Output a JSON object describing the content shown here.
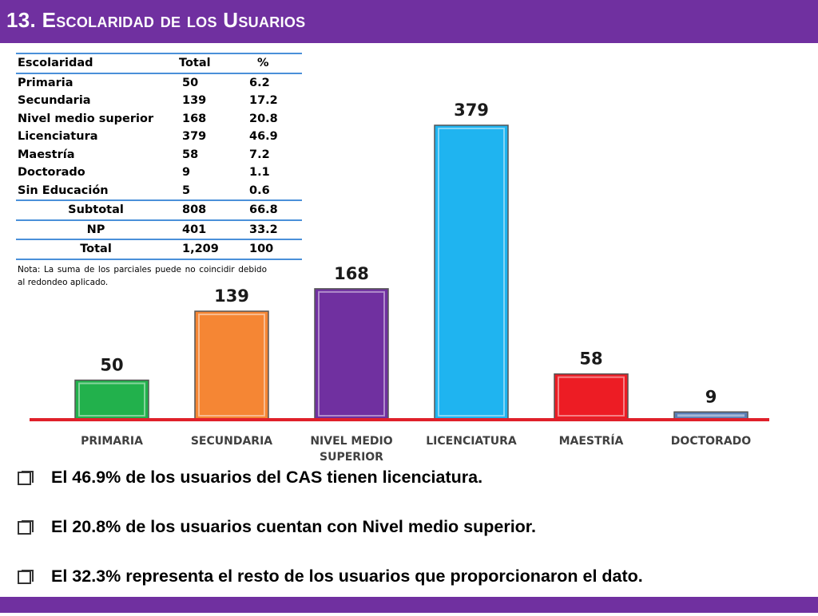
{
  "title": "13. Escolaridad de los Usuarios",
  "table": {
    "headers": [
      "Escolaridad",
      "Total",
      "%"
    ],
    "rows": [
      [
        "Primaria",
        "50",
        "6.2"
      ],
      [
        "Secundaria",
        "139",
        "17.2"
      ],
      [
        "Nivel medio superior",
        "168",
        "20.8"
      ],
      [
        "Licenciatura",
        "379",
        "46.9"
      ],
      [
        "Maestría",
        "58",
        "7.2"
      ],
      [
        "Doctorado",
        "9",
        "1.1"
      ],
      [
        "Sin Educación",
        "5",
        "0.6"
      ]
    ],
    "subtotal": [
      "Subtotal",
      "808",
      "66.8"
    ],
    "np": [
      "NP",
      "401",
      "33.2"
    ],
    "total": [
      "Total",
      "1,209",
      "100"
    ]
  },
  "note": "Nota: La suma de los parciales puede no coincidir debido al redondeo aplicado.",
  "chart_data": {
    "type": "bar",
    "categories": [
      "PRIMARIA",
      "SECUNDARIA",
      "NIVEL MEDIO SUPERIOR",
      "LICENCIATURA",
      "MAESTRÍA",
      "DOCTORADO"
    ],
    "category_lines": [
      [
        "PRIMARIA"
      ],
      [
        "SECUNDARIA"
      ],
      [
        "NIVEL MEDIO",
        "SUPERIOR"
      ],
      [
        "LICENCIATURA"
      ],
      [
        "MAESTRÍA"
      ],
      [
        "DOCTORADO"
      ]
    ],
    "values": [
      50,
      139,
      168,
      379,
      58,
      9
    ],
    "colors": [
      "#22b14c",
      "#f58634",
      "#7030a0",
      "#1fb4f0",
      "#ed1c24",
      "#5b7fb5"
    ],
    "baseline_color": "#e0202a",
    "ylim": [
      0,
      379
    ],
    "grid": false,
    "legend": "none"
  },
  "bullets": [
    "El 46.9% de los usuarios del CAS tienen licenciatura.",
    "El 20.8% de los usuarios cuentan con Nivel medio superior.",
    "El  32.3% representa el resto de los usuarios que proporcionaron el dato."
  ],
  "colors": {
    "brand": "#7030a0",
    "table_rule": "#4a90d9"
  }
}
